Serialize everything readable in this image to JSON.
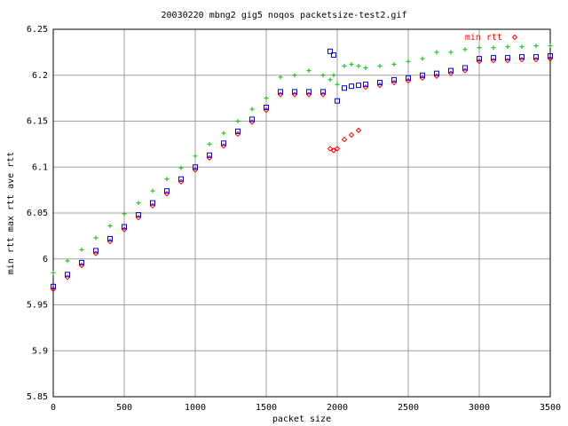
{
  "chart_data": {
    "type": "scatter",
    "title": "20030220 mbng2 gig5 noqos packetsize-test2.gif",
    "xlabel": "packet size",
    "ylabel": "min rtt max rtt ave rtt",
    "x": [
      0,
      100,
      200,
      300,
      400,
      500,
      600,
      700,
      800,
      900,
      1000,
      1100,
      1200,
      1300,
      1400,
      1500,
      1600,
      1700,
      1800,
      1900,
      1950,
      1975,
      2000,
      2050,
      2100,
      2150,
      2200,
      2300,
      2400,
      2500,
      2600,
      2700,
      2800,
      2900,
      3000,
      3100,
      3200,
      3300,
      3400,
      3500
    ],
    "series": [
      {
        "name": "min rtt",
        "color": "#ff0000",
        "marker": "diamond",
        "values": [
          5.967,
          5.98,
          5.993,
          6.006,
          6.019,
          6.032,
          6.045,
          6.058,
          6.071,
          6.084,
          6.097,
          6.11,
          6.123,
          6.136,
          6.149,
          6.162,
          6.179,
          6.179,
          6.179,
          6.179,
          6.12,
          6.118,
          6.12,
          6.13,
          6.135,
          6.14,
          6.187,
          6.189,
          6.192,
          6.194,
          6.197,
          6.199,
          6.202,
          6.205,
          6.215,
          6.216,
          6.216,
          6.217,
          6.217,
          6.218
        ]
      },
      {
        "color": "#00c000",
        "marker": "plus",
        "values": [
          5.985,
          5.998,
          6.01,
          6.023,
          6.036,
          6.049,
          6.061,
          6.074,
          6.087,
          6.099,
          6.112,
          6.125,
          6.137,
          6.15,
          6.163,
          6.175,
          6.198,
          6.2,
          6.205,
          6.2,
          6.195,
          6.2,
          6.19,
          6.21,
          6.212,
          6.21,
          6.208,
          6.21,
          6.212,
          6.215,
          6.218,
          6.225,
          6.225,
          6.228,
          6.23,
          6.23,
          6.231,
          6.231,
          6.232,
          6.232
        ]
      },
      {
        "color": "#0000ff",
        "marker": "square",
        "values": [
          5.97,
          5.983,
          5.996,
          6.009,
          6.022,
          6.035,
          6.048,
          6.061,
          6.074,
          6.087,
          6.1,
          6.113,
          6.126,
          6.139,
          6.152,
          6.165,
          6.182,
          6.182,
          6.182,
          6.182,
          6.226,
          6.222,
          6.172,
          6.186,
          6.188,
          6.189,
          6.19,
          6.192,
          6.195,
          6.197,
          6.2,
          6.202,
          6.205,
          6.208,
          6.218,
          6.219,
          6.219,
          6.22,
          6.22,
          6.221
        ]
      }
    ],
    "xlim": [
      0,
      3500
    ],
    "xticks": [
      0,
      500,
      1000,
      1500,
      2000,
      2500,
      3000,
      3500
    ],
    "ylim": [
      5.85,
      6.25
    ],
    "yticks": [
      5.85,
      5.9,
      5.95,
      6,
      6.05,
      6.1,
      6.15,
      6.2,
      6.25
    ],
    "grid": true,
    "legend": "top-right"
  }
}
